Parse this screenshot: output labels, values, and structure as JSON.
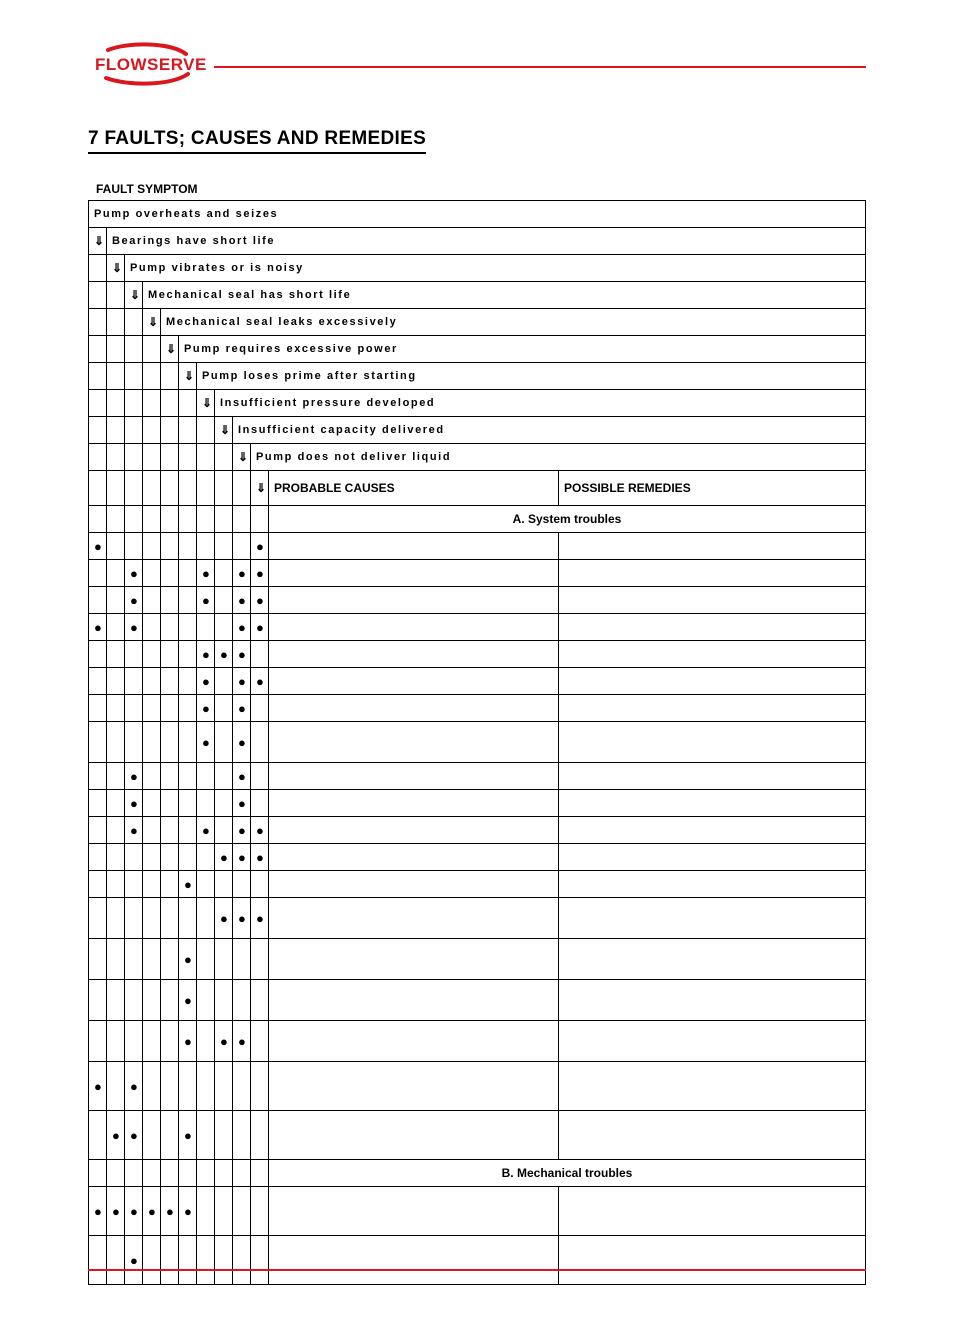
{
  "brand": {
    "name": "FLOWSERVE",
    "color": "#d9171e"
  },
  "section": "7  FAULTS; CAUSES AND REMEDIES",
  "sub_heading": "FAULT SYMPTOM",
  "arrow_glyph": "⇓",
  "dot_glyph": "●",
  "symptoms": [
    "Pump overheats and seizes",
    "Bearings have short life",
    "Pump vibrates or is noisy",
    "Mechanical seal has short life",
    "Mechanical seal leaks excessively",
    "Pump requires excessive power",
    "Pump loses prime after starting",
    "Insufficient pressure developed",
    "Insufficient capacity delivered",
    "Pump does not deliver liquid"
  ],
  "columns": {
    "causes": "PROBABLE CAUSES",
    "remedies": "POSSIBLE REMEDIES"
  },
  "section_a": "A.  System troubles",
  "section_b": "B.  Mechanical troubles",
  "rows_a": [
    {
      "dots": [
        1,
        0,
        0,
        0,
        0,
        0,
        0,
        0,
        0,
        1
      ],
      "h": ""
    },
    {
      "dots": [
        0,
        0,
        1,
        0,
        0,
        0,
        1,
        0,
        1,
        1
      ],
      "h": ""
    },
    {
      "dots": [
        0,
        0,
        1,
        0,
        0,
        0,
        1,
        0,
        1,
        1
      ],
      "h": ""
    },
    {
      "dots": [
        1,
        0,
        1,
        0,
        0,
        0,
        0,
        0,
        1,
        1
      ],
      "h": ""
    },
    {
      "dots": [
        0,
        0,
        0,
        0,
        0,
        0,
        1,
        1,
        1,
        0
      ],
      "h": ""
    },
    {
      "dots": [
        0,
        0,
        0,
        0,
        0,
        0,
        1,
        0,
        1,
        1
      ],
      "h": ""
    },
    {
      "dots": [
        0,
        0,
        0,
        0,
        0,
        0,
        1,
        0,
        1,
        0
      ],
      "h": ""
    },
    {
      "dots": [
        0,
        0,
        0,
        0,
        0,
        0,
        1,
        0,
        1,
        0
      ],
      "h": "tall"
    },
    {
      "dots": [
        0,
        0,
        1,
        0,
        0,
        0,
        0,
        0,
        1,
        0
      ],
      "h": ""
    },
    {
      "dots": [
        0,
        0,
        1,
        0,
        0,
        0,
        0,
        0,
        1,
        0
      ],
      "h": ""
    },
    {
      "dots": [
        0,
        0,
        1,
        0,
        0,
        0,
        1,
        0,
        1,
        1
      ],
      "h": ""
    },
    {
      "dots": [
        0,
        0,
        0,
        0,
        0,
        0,
        0,
        1,
        1,
        1
      ],
      "h": ""
    },
    {
      "dots": [
        0,
        0,
        0,
        0,
        0,
        1,
        0,
        0,
        0,
        0
      ],
      "h": ""
    },
    {
      "dots": [
        0,
        0,
        0,
        0,
        0,
        0,
        0,
        1,
        1,
        1
      ],
      "h": "tall"
    },
    {
      "dots": [
        0,
        0,
        0,
        0,
        0,
        1,
        0,
        0,
        0,
        0
      ],
      "h": "tall"
    },
    {
      "dots": [
        0,
        0,
        0,
        0,
        0,
        1,
        0,
        0,
        0,
        0
      ],
      "h": "tall"
    },
    {
      "dots": [
        0,
        0,
        0,
        0,
        0,
        1,
        0,
        1,
        1,
        0
      ],
      "h": "tall"
    },
    {
      "dots": [
        1,
        0,
        1,
        0,
        0,
        0,
        0,
        0,
        0,
        0
      ],
      "h": "taller"
    },
    {
      "dots": [
        0,
        1,
        1,
        0,
        0,
        1,
        0,
        0,
        0,
        0
      ],
      "h": "taller"
    }
  ],
  "rows_b": [
    {
      "dots": [
        1,
        1,
        1,
        1,
        1,
        1,
        0,
        0,
        0,
        0
      ],
      "h": "taller"
    },
    {
      "dots": [
        0,
        0,
        1,
        0,
        0,
        0,
        0,
        0,
        0,
        0
      ],
      "h": "taller"
    }
  ]
}
